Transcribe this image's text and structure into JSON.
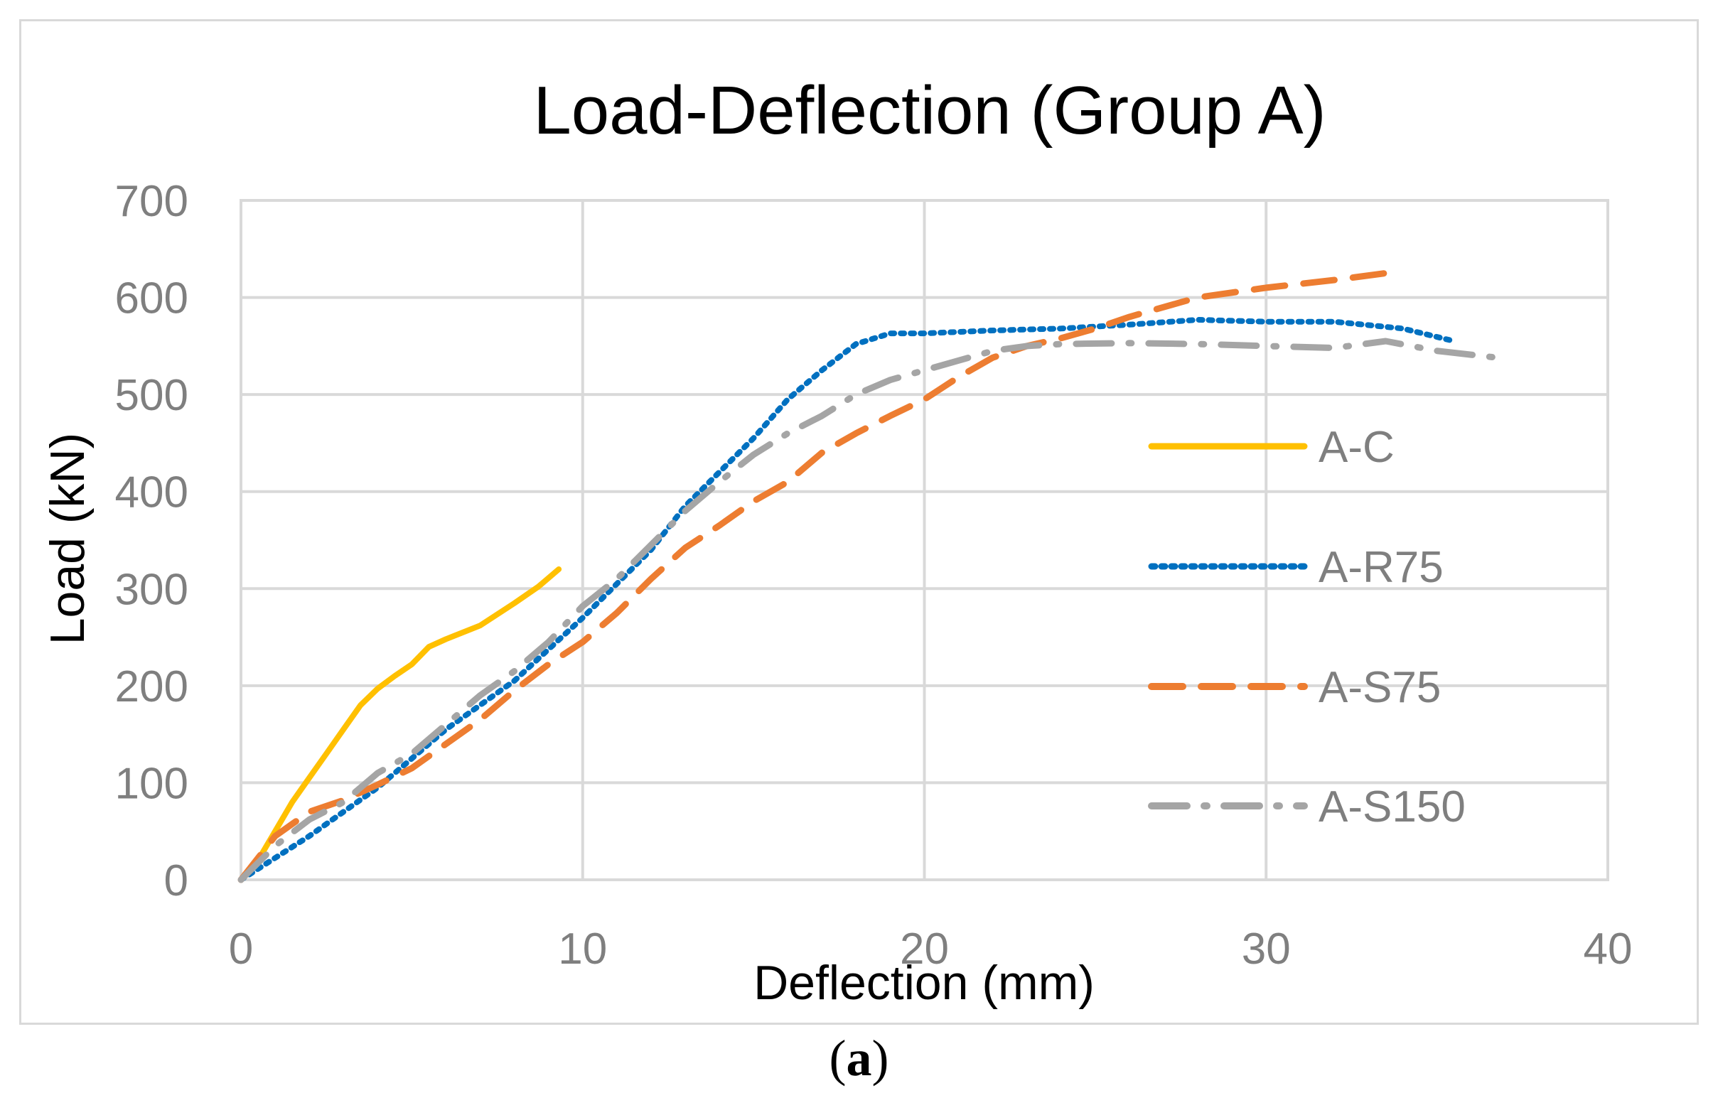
{
  "chart_data": {
    "type": "line",
    "title": "Load-Deflection (Group A)",
    "xlabel": "Deflection (mm)",
    "ylabel": "Load (kN)",
    "xlim": [
      0,
      40
    ],
    "ylim": [
      0,
      700
    ],
    "xticks": [
      0,
      10,
      20,
      30,
      40
    ],
    "yticks": [
      0,
      100,
      200,
      300,
      400,
      500,
      600,
      700
    ],
    "grid": true,
    "legend_position": "right",
    "series": [
      {
        "name": "A-C",
        "color": "#FFC000",
        "style": "solid",
        "points": [
          [
            0,
            0
          ],
          [
            0.5,
            20
          ],
          [
            1,
            50
          ],
          [
            1.5,
            80
          ],
          [
            2,
            105
          ],
          [
            2.5,
            130
          ],
          [
            3,
            155
          ],
          [
            3.5,
            180
          ],
          [
            4,
            197
          ],
          [
            4.5,
            210
          ],
          [
            5,
            222
          ],
          [
            5.5,
            240
          ],
          [
            6,
            248
          ],
          [
            7,
            262
          ],
          [
            8,
            285
          ],
          [
            8.7,
            302
          ],
          [
            9.3,
            320
          ]
        ]
      },
      {
        "name": "A-R75",
        "color": "#0070C0",
        "style": "dotted",
        "points": [
          [
            0,
            0
          ],
          [
            2,
            45
          ],
          [
            4,
            95
          ],
          [
            6,
            155
          ],
          [
            8,
            205
          ],
          [
            10,
            270
          ],
          [
            12,
            340
          ],
          [
            13,
            385
          ],
          [
            14,
            420
          ],
          [
            15,
            455
          ],
          [
            16,
            495
          ],
          [
            17,
            525
          ],
          [
            18,
            552
          ],
          [
            19,
            563
          ],
          [
            20,
            563
          ],
          [
            22,
            566
          ],
          [
            24,
            568
          ],
          [
            26,
            572
          ],
          [
            28,
            577
          ],
          [
            30,
            575
          ],
          [
            32,
            575
          ],
          [
            34,
            568
          ],
          [
            35.5,
            555
          ]
        ]
      },
      {
        "name": "A-S75",
        "color": "#ED7D31",
        "style": "dashed",
        "points": [
          [
            0,
            0
          ],
          [
            1,
            45
          ],
          [
            2,
            70
          ],
          [
            3,
            82
          ],
          [
            4,
            98
          ],
          [
            5,
            115
          ],
          [
            6,
            140
          ],
          [
            7,
            165
          ],
          [
            8,
            195
          ],
          [
            9,
            222
          ],
          [
            10,
            245
          ],
          [
            11,
            275
          ],
          [
            12,
            310
          ],
          [
            13,
            342
          ],
          [
            14,
            365
          ],
          [
            15,
            390
          ],
          [
            16,
            410
          ],
          [
            17,
            440
          ],
          [
            18,
            460
          ],
          [
            19,
            478
          ],
          [
            20,
            495
          ],
          [
            21,
            518
          ],
          [
            22,
            538
          ],
          [
            23,
            550
          ],
          [
            24,
            558
          ],
          [
            25,
            568
          ],
          [
            26,
            580
          ],
          [
            27,
            590
          ],
          [
            28,
            600
          ],
          [
            30,
            610
          ],
          [
            32,
            618
          ],
          [
            33.5,
            625
          ]
        ]
      },
      {
        "name": "A-S150",
        "color": "#A5A5A5",
        "style": "dashdot",
        "points": [
          [
            0,
            0
          ],
          [
            1,
            35
          ],
          [
            2,
            62
          ],
          [
            3,
            80
          ],
          [
            4,
            110
          ],
          [
            5,
            130
          ],
          [
            6,
            160
          ],
          [
            7,
            190
          ],
          [
            8,
            215
          ],
          [
            9,
            245
          ],
          [
            10,
            282
          ],
          [
            11,
            310
          ],
          [
            12,
            345
          ],
          [
            13,
            380
          ],
          [
            14,
            410
          ],
          [
            15,
            438
          ],
          [
            16,
            460
          ],
          [
            17,
            478
          ],
          [
            18,
            500
          ],
          [
            19,
            515
          ],
          [
            20,
            525
          ],
          [
            21,
            535
          ],
          [
            22,
            545
          ],
          [
            23,
            550
          ],
          [
            24,
            552
          ],
          [
            26,
            553
          ],
          [
            28,
            552
          ],
          [
            30,
            550
          ],
          [
            32,
            548
          ],
          [
            33.5,
            555
          ],
          [
            35,
            545
          ],
          [
            37,
            537
          ]
        ]
      }
    ]
  },
  "caption": {
    "open": "(",
    "letter": "a",
    "close": ")"
  }
}
